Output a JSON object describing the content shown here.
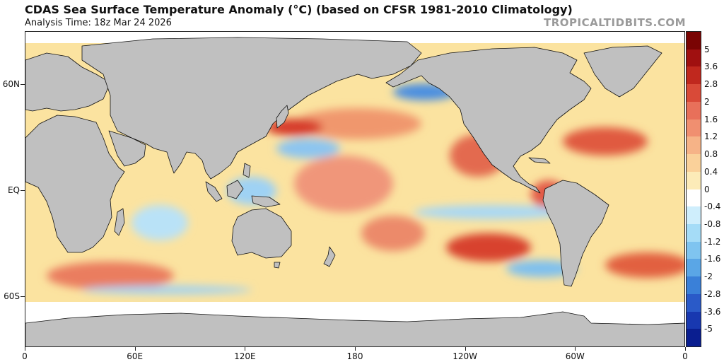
{
  "header": {
    "title": "CDAS Sea Surface Temperature Anomaly (°C) (based on CFSR 1981-2010 Climatology)",
    "subtitle": "Analysis Time: 18z Mar 24 2026",
    "brand": "TROPICALTIDBITS.COM"
  },
  "map": {
    "projection": "equirectangular",
    "lon_range": [
      0,
      360
    ],
    "lat_range": [
      -90,
      90
    ],
    "lat_labels": [
      {
        "text": "60N",
        "lat": 60
      },
      {
        "text": "EQ",
        "lat": 0
      },
      {
        "text": "60S",
        "lat": -60
      }
    ],
    "lon_labels": [
      {
        "text": "0",
        "lon": 0
      },
      {
        "text": "60E",
        "lon": 60
      },
      {
        "text": "120E",
        "lon": 120
      },
      {
        "text": "180",
        "lon": 180
      },
      {
        "text": "120W",
        "lon": 240
      },
      {
        "text": "60W",
        "lon": 300
      },
      {
        "text": "0",
        "lon": 360
      }
    ],
    "colors": {
      "land": "#c0c0c0",
      "ice": "#ffffff",
      "ocean_base": "#fbe9a8",
      "coast": "#111111"
    }
  },
  "colorbar": {
    "labels": [
      "5",
      "3.6",
      "2.8",
      "2",
      "1.6",
      "1.2",
      "0.8",
      "0.4",
      "0",
      "-0.4",
      "-0.8",
      "-1.2",
      "-1.6",
      "-2",
      "-2.8",
      "-3.6",
      "-5"
    ],
    "colors": [
      "#7a0403",
      "#a01010",
      "#c0281e",
      "#d94a38",
      "#e8705a",
      "#f08f70",
      "#f6b387",
      "#fad19a",
      "#fcebb8",
      "#ffffff",
      "#cfeefc",
      "#a5dcf7",
      "#7fc4f0",
      "#5aa6e6",
      "#3a80d8",
      "#2a5ac8",
      "#1838b0",
      "#0a1e90"
    ]
  }
}
